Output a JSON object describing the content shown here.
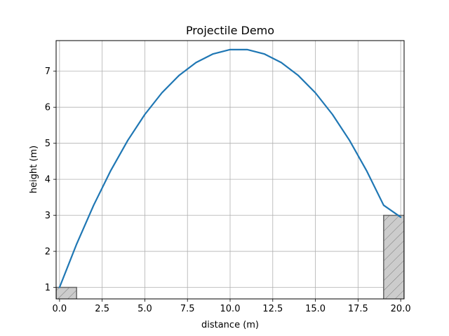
{
  "chart_data": {
    "type": "line",
    "title": "Projectile Demo",
    "xlabel": "distance (m)",
    "ylabel": "height (m)",
    "xlim": [
      -0.2,
      20.2
    ],
    "ylim": [
      0.68,
      7.85
    ],
    "xticks": [
      0.0,
      2.5,
      5.0,
      7.5,
      10.0,
      12.5,
      15.0,
      17.5,
      20.0
    ],
    "xtick_labels": [
      "0.0",
      "2.5",
      "5.0",
      "7.5",
      "10.0",
      "12.5",
      "15.0",
      "17.5",
      "20.0"
    ],
    "yticks": [
      1,
      2,
      3,
      4,
      5,
      6,
      7
    ],
    "ytick_labels": [
      "1",
      "2",
      "3",
      "4",
      "5",
      "6",
      "7"
    ],
    "grid": true,
    "series": [
      {
        "color": "#1f77b4",
        "x": [
          0,
          1,
          2,
          3,
          4,
          5,
          6,
          7,
          8,
          9,
          10,
          11,
          12,
          13,
          14,
          15,
          16,
          17,
          18,
          19,
          20
        ],
        "y": [
          1.0,
          2.2,
          3.28,
          4.24,
          5.08,
          5.8,
          6.4,
          6.88,
          7.24,
          7.48,
          7.6,
          7.6,
          7.48,
          7.24,
          6.88,
          6.4,
          5.8,
          5.08,
          4.24,
          3.28,
          2.95
        ]
      }
    ],
    "platforms": [
      {
        "x0": -0.2,
        "x1": 1.0,
        "height": 1.0,
        "color": "#cccccc",
        "edge": "#666666"
      },
      {
        "x0": 19.0,
        "x1": 20.2,
        "height": 3.0,
        "color": "#cccccc",
        "edge": "#666666"
      }
    ]
  }
}
